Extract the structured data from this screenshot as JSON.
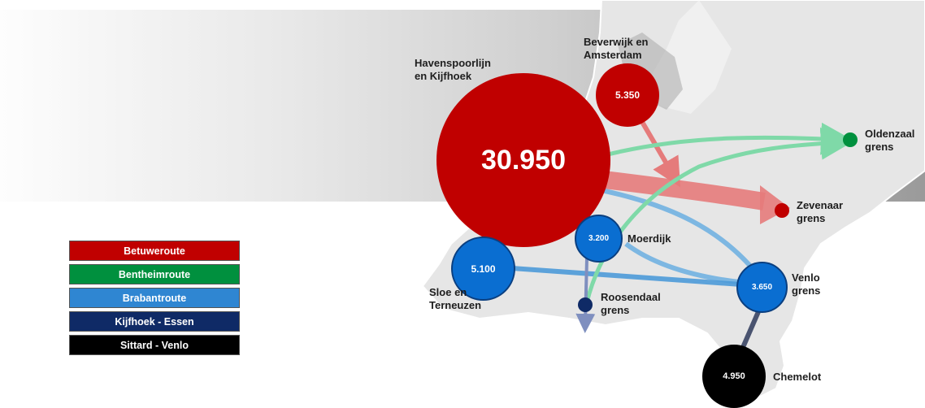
{
  "legend": [
    {
      "label": "Betuweroute",
      "color": "#c00000"
    },
    {
      "label": "Bentheimroute",
      "color": "#00903e"
    },
    {
      "label": "Brabantroute",
      "color": "#2f86d2"
    },
    {
      "label": "Kijfhoek - Essen",
      "color": "#0f2a66"
    },
    {
      "label": "Sittard - Venlo",
      "color": "#000000"
    }
  ],
  "nodes": {
    "havenspoorlijn": {
      "value": "30.950",
      "label": "Havenspoorlijn\nen Kijfhoek",
      "color": "#c00000"
    },
    "beverwijk": {
      "value": "5.350",
      "label": "Beverwijk en\nAmsterdam",
      "color": "#c00000"
    },
    "sloe": {
      "value": "5.100",
      "label": "Sloe en\nTerneuzen",
      "color": "#0a6ed1"
    },
    "moerdijk": {
      "value": "3.200",
      "label": "Moerdijk",
      "color": "#0a6ed1"
    },
    "venlo": {
      "value": "3.650",
      "label": "Venlo\ngrens",
      "color": "#0a6ed1"
    },
    "chemelot": {
      "value": "4.950",
      "label": "Chemelot",
      "color": "#000000"
    },
    "oldenzaal": {
      "label": "Oldenzaal\ngrens",
      "color": "#00903e"
    },
    "zevenaar": {
      "label": "Zevenaar\ngrens",
      "color": "#c00000"
    },
    "roosendaal": {
      "label": "Roosendaal\ngrens",
      "color": "#0f2a66"
    }
  }
}
